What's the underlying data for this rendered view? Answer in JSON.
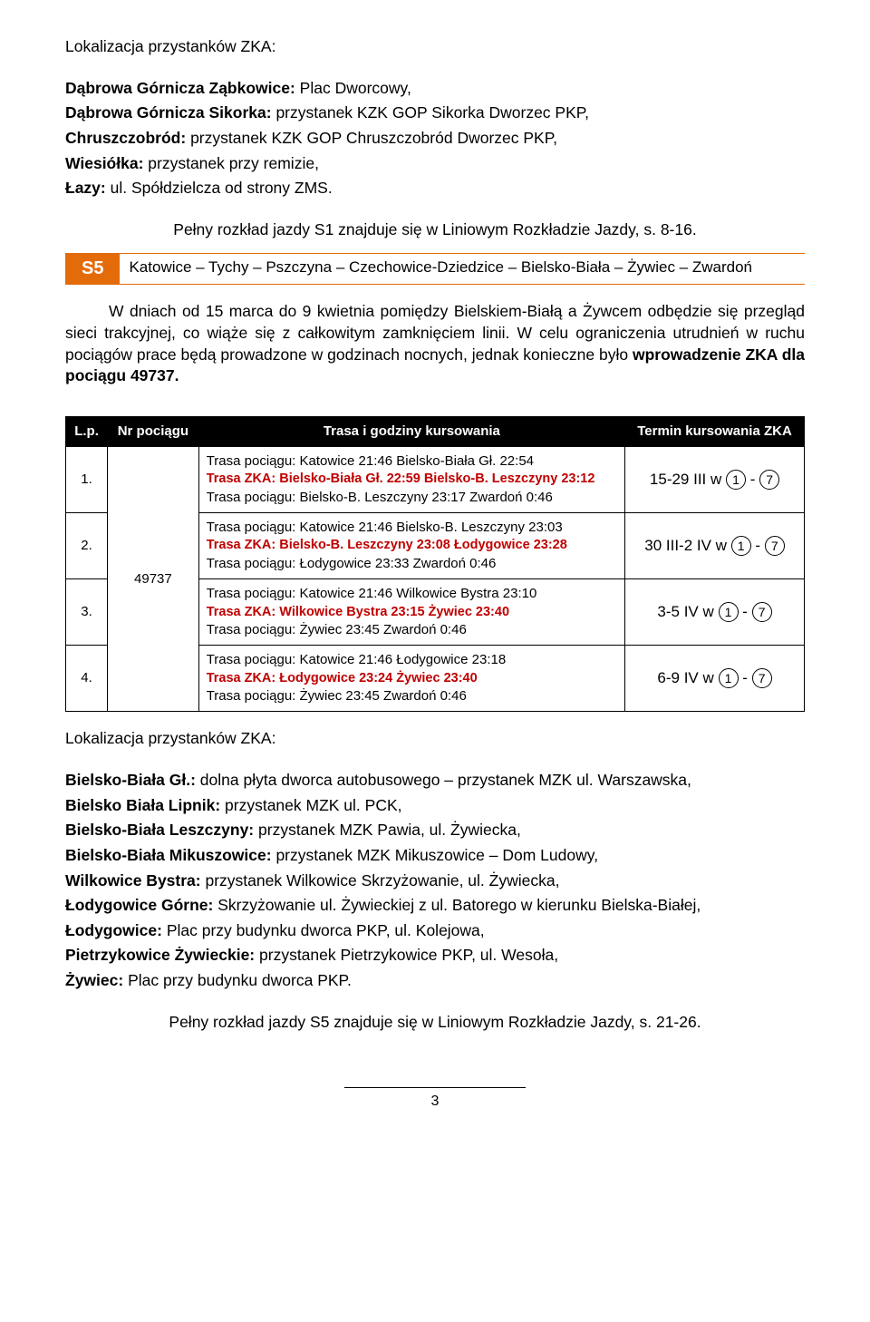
{
  "top": {
    "heading": "Lokalizacja przystanków ZKA:",
    "lines": [
      {
        "b": "Dąbrowa Górnicza Ząbkowice:",
        "t": " Plac Dworcowy,"
      },
      {
        "b": "Dąbrowa Górnicza Sikorka:",
        "t": " przystanek KZK GOP Sikorka Dworzec PKP,"
      },
      {
        "b": "Chruszczobród:",
        "t": " przystanek KZK GOP Chruszczobród Dworzec PKP,"
      },
      {
        "b": "Wiesiółka:",
        "t": " przystanek przy remizie,"
      },
      {
        "b": "Łazy:",
        "t": " ul. Spółdzielcza od strony ZMS."
      }
    ],
    "note": "Pełny rozkład jazdy S1 znajduje się w Liniowym Rozkładzie Jazdy, s. 8-16."
  },
  "s5": {
    "badge": "S5",
    "title": "Katowice – Tychy – Pszczyna – Czechowice-Dziedzice – Bielsko-Biała – Żywiec – Zwardoń"
  },
  "para": "W dniach od 15 marca do 9 kwietnia pomiędzy Bielskiem-Białą a Żywcem odbędzie się przegląd sieci trakcyjnej, co wiąże się z całkowitym zamknięciem linii. W celu ograniczenia utrudnień w ruchu pociągów prace będą prowadzone w godzinach nocnych, jednak konieczne było wprowadzenie ZKA dla pociągu 49737.",
  "para_bold_tail": "wprowadzenie ZKA dla pociągu 49737.",
  "table": {
    "headers": {
      "lp": "L.p.",
      "nr": "Nr pociągu",
      "trasa": "Trasa i godziny kursowania",
      "termin": "Termin kursowania ZKA"
    },
    "nr_value": "49737",
    "rows": [
      {
        "lp": "1.",
        "l1": "Trasa pociągu: Katowice 21:46 Bielsko-Biała Gł. 22:54",
        "l2": "Trasa ZKA: Bielsko-Biała Gł. 22:59 Bielsko-B. Leszczyny 23:12",
        "l3": "Trasa pociągu: Bielsko-B. Leszczyny 23:17 Zwardoń 0:46",
        "term_prefix": "15-29 III w",
        "c1": "1",
        "c2": "7"
      },
      {
        "lp": "2.",
        "l1": "Trasa pociągu: Katowice 21:46 Bielsko-B. Leszczyny 23:03",
        "l2": "Trasa ZKA: Bielsko-B. Leszczyny 23:08 Łodygowice 23:28",
        "l3": "Trasa pociągu: Łodygowice 23:33 Zwardoń 0:46",
        "term_prefix": "30 III-2 IV w",
        "c1": "1",
        "c2": "7"
      },
      {
        "lp": "3.",
        "l1": "Trasa pociągu: Katowice 21:46 Wilkowice Bystra 23:10",
        "l2": "Trasa ZKA: Wilkowice Bystra 23:15 Żywiec 23:40",
        "l3": "Trasa pociągu: Żywiec 23:45 Zwardoń 0:46",
        "term_prefix": "3-5 IV w",
        "c1": "1",
        "c2": "7"
      },
      {
        "lp": "4.",
        "l1": "Trasa pociągu: Katowice 21:46 Łodygowice 23:18",
        "l2": "Trasa ZKA: Łodygowice 23:24 Żywiec 23:40",
        "l3": "Trasa pociągu: Żywiec 23:45 Zwardoń 0:46",
        "term_prefix": "6-9 IV w",
        "c1": "1",
        "c2": "7"
      }
    ]
  },
  "bottom": {
    "heading": "Lokalizacja przystanków ZKA:",
    "lines": [
      {
        "b": "Bielsko-Biała Gł.:",
        "t": " dolna płyta dworca autobusowego – przystanek MZK ul. Warszawska,"
      },
      {
        "b": "Bielsko Biała Lipnik:",
        "t": " przystanek MZK ul. PCK,"
      },
      {
        "b": "Bielsko-Biała Leszczyny:",
        "t": " przystanek MZK Pawia, ul. Żywiecka,"
      },
      {
        "b": "Bielsko-Biała Mikuszowice:",
        "t": " przystanek MZK Mikuszowice – Dom Ludowy,"
      },
      {
        "b": "Wilkowice Bystra:",
        "t": " przystanek Wilkowice Skrzyżowanie, ul. Żywiecka,"
      },
      {
        "b": "Łodygowice Górne:",
        "t": " Skrzyżowanie ul. Żywieckiej z ul. Batorego w kierunku Bielska-Białej,"
      },
      {
        "b": "Łodygowice:",
        "t": " Plac przy budynku dworca PKP, ul. Kolejowa,"
      },
      {
        "b": "Pietrzykowice Żywieckie:",
        "t": " przystanek Pietrzykowice PKP, ul. Wesoła,"
      },
      {
        "b": "Żywiec:",
        "t": " Plac przy budynku dworca PKP."
      }
    ],
    "note": "Pełny rozkład jazdy S5 znajduje się w Liniowym Rozkładzie Jazdy, s. 21-26."
  },
  "page_number": "3"
}
